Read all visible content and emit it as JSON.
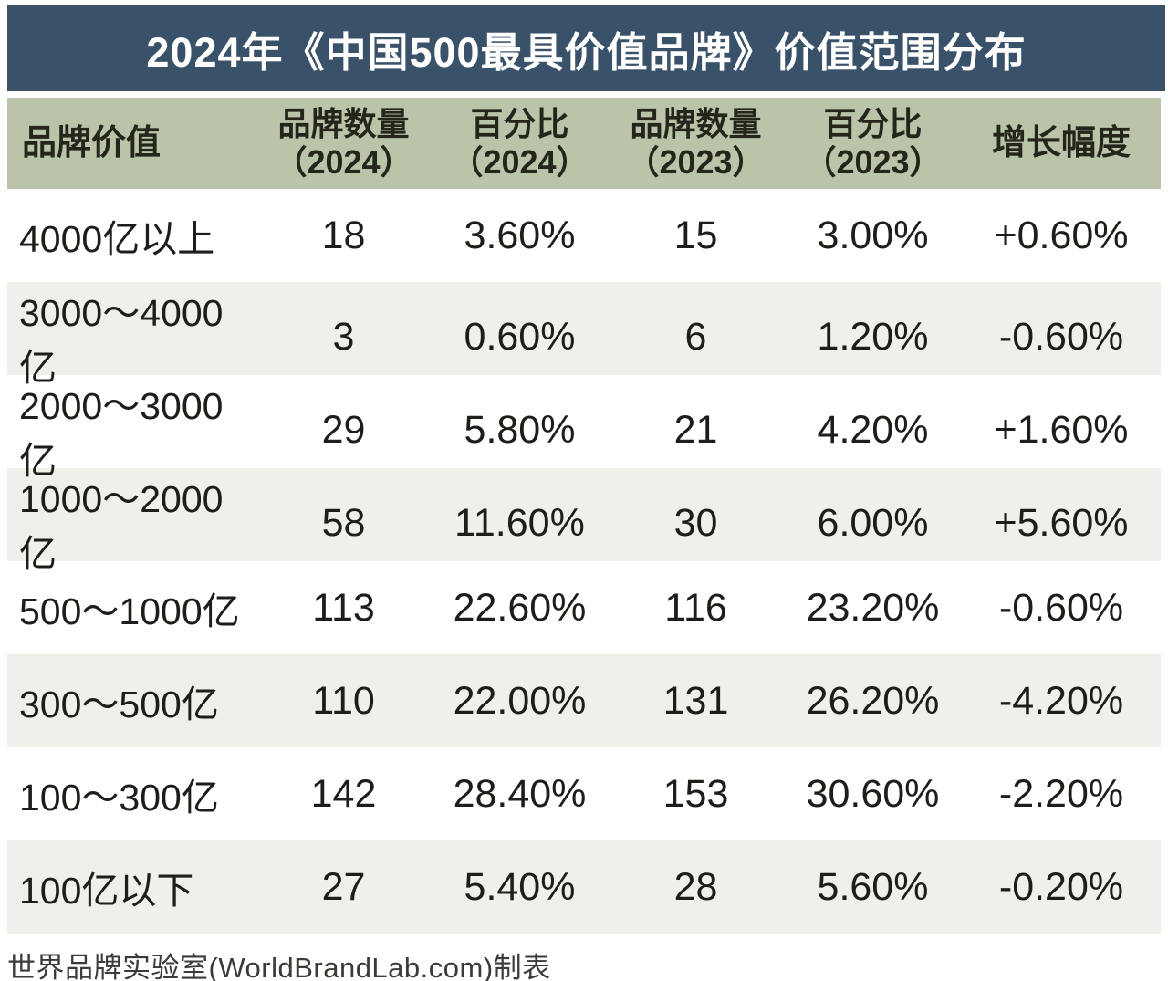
{
  "title": "2024年《中国500最具价值品牌》价值范围分布",
  "footer": "世界品牌实验室(WorldBrandLab.com)制表",
  "colors": {
    "title_bg": "#3a5269",
    "title_text": "#ffffff",
    "header_bg": "#bac4a9",
    "header_text": "#25251b",
    "row_bg": "#ffffff",
    "row_alt_bg": "#f0efe9",
    "body_text": "#1d1d1a"
  },
  "table": {
    "headers": [
      {
        "line1": "品牌价值",
        "line2": ""
      },
      {
        "line1": "品牌数量",
        "line2": "（2024）"
      },
      {
        "line1": "百分比",
        "line2": "（2024）"
      },
      {
        "line1": "品牌数量",
        "line2": "（2023）"
      },
      {
        "line1": "百分比",
        "line2": "（2023）"
      },
      {
        "line1": "增长幅度",
        "line2": ""
      }
    ],
    "rows": [
      [
        "4000亿以上",
        "18",
        "3.60%",
        "15",
        "3.00%",
        "+0.60%"
      ],
      [
        "3000～4000亿",
        "3",
        "0.60%",
        "6",
        "1.20%",
        "-0.60%"
      ],
      [
        "2000～3000亿",
        "29",
        "5.80%",
        "21",
        "4.20%",
        "+1.60%"
      ],
      [
        "1000～2000亿",
        "58",
        "11.60%",
        "30",
        "6.00%",
        "+5.60%"
      ],
      [
        "500～1000亿",
        "113",
        "22.60%",
        "116",
        "23.20%",
        "-0.60%"
      ],
      [
        "300～500亿",
        "110",
        "22.00%",
        "131",
        "26.20%",
        "-4.20%"
      ],
      [
        "100～300亿",
        "142",
        "28.40%",
        "153",
        "30.60%",
        "-2.20%"
      ],
      [
        "100亿以下",
        "27",
        "5.40%",
        "28",
        "5.60%",
        "-0.20%"
      ]
    ]
  },
  "chart_data": {
    "type": "table",
    "title": "2024年《中国500最具价值品牌》价值范围分布",
    "columns": [
      "品牌价值",
      "品牌数量（2024）",
      "百分比（2024）",
      "品牌数量（2023）",
      "百分比（2023）",
      "增长幅度"
    ],
    "rows": [
      {
        "range": "4000亿以上",
        "count_2024": 18,
        "pct_2024": "3.60%",
        "count_2023": 15,
        "pct_2023": "3.00%",
        "change": "+0.60%"
      },
      {
        "range": "3000～4000亿",
        "count_2024": 3,
        "pct_2024": "0.60%",
        "count_2023": 6,
        "pct_2023": "1.20%",
        "change": "-0.60%"
      },
      {
        "range": "2000～3000亿",
        "count_2024": 29,
        "pct_2024": "5.80%",
        "count_2023": 21,
        "pct_2023": "4.20%",
        "change": "+1.60%"
      },
      {
        "range": "1000～2000亿",
        "count_2024": 58,
        "pct_2024": "11.60%",
        "count_2023": 30,
        "pct_2023": "6.00%",
        "change": "+5.60%"
      },
      {
        "range": "500～1000亿",
        "count_2024": 113,
        "pct_2024": "22.60%",
        "count_2023": 116,
        "pct_2023": "23.20%",
        "change": "-0.60%"
      },
      {
        "range": "300～500亿",
        "count_2024": 110,
        "pct_2024": "22.00%",
        "count_2023": 131,
        "pct_2023": "26.20%",
        "change": "-4.20%"
      },
      {
        "range": "100～300亿",
        "count_2024": 142,
        "pct_2024": "28.40%",
        "count_2023": 153,
        "pct_2023": "30.60%",
        "change": "-2.20%"
      },
      {
        "range": "100亿以下",
        "count_2024": 27,
        "pct_2024": "5.40%",
        "count_2023": 28,
        "pct_2023": "5.60%",
        "change": "-0.20%"
      }
    ],
    "source_note": "世界品牌实验室(WorldBrandLab.com)制表"
  }
}
